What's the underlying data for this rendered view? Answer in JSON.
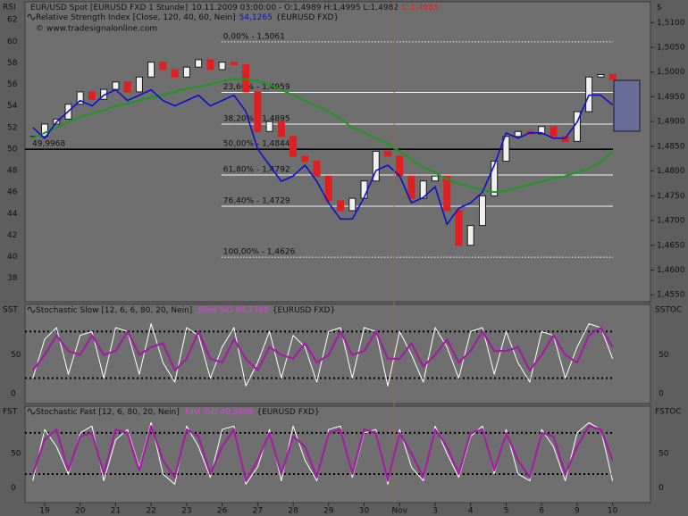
{
  "chart_data": [
    {
      "type": "candlestick",
      "left_axis_label": "RSI",
      "right_axis_label": "$",
      "watermark": "© www.tradesignalonline.com",
      "x": [
        0,
        1,
        2,
        3,
        4,
        5,
        6,
        7,
        8,
        9,
        10,
        11,
        12,
        13,
        14,
        15,
        16,
        17,
        18,
        19,
        20,
        21,
        22,
        23,
        24,
        25,
        26,
        27,
        28,
        29,
        30,
        31,
        32,
        33,
        34,
        35,
        36,
        37,
        38,
        39,
        40,
        41,
        42,
        43,
        44,
        45,
        46,
        47,
        48,
        49
      ],
      "xlim": [
        -0.66,
        52.2
      ],
      "xticks": [
        {
          "value": 1,
          "label": "19"
        },
        {
          "value": 4,
          "label": "20"
        },
        {
          "value": 7,
          "label": "21"
        },
        {
          "value": 10,
          "label": "22"
        },
        {
          "value": 13,
          "label": "23"
        },
        {
          "value": 16,
          "label": "26"
        },
        {
          "value": 19,
          "label": "27"
        },
        {
          "value": 22,
          "label": "28"
        },
        {
          "value": 25,
          "label": "29"
        },
        {
          "value": 28,
          "label": "30"
        },
        {
          "value": 31,
          "label": "Nov"
        },
        {
          "value": 34,
          "label": "3"
        },
        {
          "value": 37,
          "label": "4"
        },
        {
          "value": 40,
          "label": "5"
        },
        {
          "value": 43,
          "label": "6"
        },
        {
          "value": 46,
          "label": "9"
        },
        {
          "value": 49,
          "label": "10"
        }
      ],
      "ylim": [
        35.82,
        63.67
      ],
      "yticks": [
        38,
        40,
        42,
        44,
        46,
        48,
        50,
        52,
        54,
        56,
        58,
        60,
        62
      ],
      "y2lim": [
        1.4536,
        1.5142
      ],
      "y2ticks": [
        {
          "value": 1.51,
          "label": "1,5100"
        },
        {
          "value": 1.505,
          "label": "1,5050"
        },
        {
          "value": 1.5,
          "label": "1,5000"
        },
        {
          "value": 1.495,
          "label": "1,4950"
        },
        {
          "value": 1.49,
          "label": "1,4900"
        },
        {
          "value": 1.485,
          "label": "1,4850"
        },
        {
          "value": 1.48,
          "label": "1,4800"
        },
        {
          "value": 1.475,
          "label": "1,4750"
        },
        {
          "value": 1.47,
          "label": "1,4700"
        },
        {
          "value": 1.465,
          "label": "1,4650"
        },
        {
          "value": 1.46,
          "label": "1,4600"
        },
        {
          "value": 1.455,
          "label": "1,4550"
        }
      ],
      "series": [
        {
          "name": "EUR/USD Spot [EURUSD FXD  1 Stunde]",
          "readout": "10.11.2009 03:00:00 - O:1,4989 H:1,4995 L:1,4982",
          "last": "C:1,4985",
          "axis": "y2",
          "up_color": "#1a1a1a",
          "down_color": "#e02020",
          "values": [
            1.487,
            1.4895,
            1.4905,
            1.4935,
            1.496,
            1.4945,
            1.4965,
            1.498,
            1.496,
            1.499,
            1.502,
            1.5005,
            1.499,
            1.501,
            1.5025,
            1.5005,
            1.502,
            1.5015,
            1.496,
            1.488,
            1.49,
            1.487,
            1.483,
            1.482,
            1.479,
            1.474,
            1.472,
            1.4745,
            1.478,
            1.484,
            1.483,
            1.479,
            1.4745,
            1.478,
            1.479,
            1.472,
            1.465,
            1.469,
            1.475,
            1.482,
            1.487,
            1.488,
            1.4875,
            1.489,
            1.487,
            1.486,
            1.492,
            1.499,
            1.4995,
            1.4985
          ]
        },
        {
          "name": "Relative Strength Index [Close, 120, 40, 60, Nein]",
          "readout": "54,1265",
          "source": "{EURUSD FXD}",
          "color": "#1010d0",
          "values": [
            52,
            51,
            52.5,
            53.5,
            54.5,
            54,
            55,
            55.5,
            54.5,
            55,
            55.5,
            54.5,
            54,
            54.5,
            55,
            54,
            54.5,
            55,
            53.5,
            50,
            48.5,
            47,
            47.5,
            48.5,
            47,
            45,
            43.5,
            43.5,
            45.5,
            48,
            48.5,
            47.5,
            45,
            45.5,
            46.5,
            43,
            44.5,
            45,
            46,
            48.5,
            51.5,
            51,
            51.5,
            51.5,
            51,
            51,
            52.5,
            55,
            55,
            54.1
          ]
        },
        {
          "color": "#1c9a1c",
          "values": [
            51,
            51.5,
            52,
            52.5,
            53,
            53.3,
            53.6,
            54,
            54.2,
            54.5,
            54.8,
            55,
            55.3,
            55.6,
            55.8,
            56,
            56.3,
            56.5,
            56.5,
            56.3,
            56,
            55.5,
            55,
            54.5,
            54,
            53.5,
            52.8,
            52,
            51.5,
            51,
            50.5,
            49.8,
            49,
            48.3,
            47.8,
            47.2,
            46.8,
            46.5,
            46.2,
            46,
            46.1,
            46.4,
            46.7,
            47,
            47.3,
            47.5,
            47.8,
            48.2,
            48.8,
            49.8
          ]
        }
      ],
      "midline": 49.9968,
      "midline_label": "49,9968",
      "fib_levels": [
        {
          "value": 1.5061,
          "label": "0,00% - 1,5061"
        },
        {
          "value": 1.4959,
          "label": "23,60% - 1,4959"
        },
        {
          "value": 1.4895,
          "label": "38,20% - 1,4895"
        },
        {
          "value": 1.4844,
          "label": "50,00% - 1,4844"
        },
        {
          "value": 1.4792,
          "label": "61,80% - 1,4792"
        },
        {
          "value": 1.4729,
          "label": "76,40% - 1,4729"
        },
        {
          "value": 1.4626,
          "label": "100,00% - 1,4626"
        }
      ]
    },
    {
      "type": "line",
      "left_axis_label": "SST",
      "right_axis_label": "SSTOC",
      "title": "Stochastic Slow [12, 6, 6, 80, 20, Nein]",
      "readout": "Slow %D 60,2768",
      "source": "{EURUSD FXD}",
      "x": [
        0,
        1,
        2,
        3,
        4,
        5,
        6,
        7,
        8,
        9,
        10,
        11,
        12,
        13,
        14,
        15,
        16,
        17,
        18,
        19,
        20,
        21,
        22,
        23,
        24,
        25,
        26,
        27,
        28,
        29,
        30,
        31,
        32,
        33,
        34,
        35,
        36,
        37,
        38,
        39,
        40,
        41,
        42,
        43,
        44,
        45,
        46,
        47,
        48,
        49
      ],
      "xlim": [
        -0.66,
        52.2
      ],
      "ylim": [
        -12.5,
        114.8
      ],
      "yticks": [
        0,
        50
      ],
      "levels": [
        20,
        80
      ],
      "series": [
        {
          "color": "#ffffff",
          "values": [
            20,
            70,
            85,
            25,
            75,
            80,
            20,
            85,
            80,
            25,
            90,
            40,
            15,
            85,
            75,
            20,
            60,
            85,
            10,
            40,
            80,
            20,
            75,
            60,
            15,
            80,
            85,
            20,
            85,
            80,
            10,
            80,
            50,
            15,
            85,
            60,
            20,
            80,
            85,
            25,
            80,
            40,
            15,
            80,
            75,
            20,
            60,
            90,
            85,
            45
          ]
        },
        {
          "color": "#a21ea2",
          "values": [
            30,
            50,
            75,
            55,
            50,
            75,
            50,
            55,
            80,
            50,
            60,
            65,
            30,
            45,
            80,
            45,
            40,
            70,
            45,
            30,
            60,
            50,
            45,
            65,
            40,
            50,
            80,
            50,
            55,
            80,
            45,
            45,
            65,
            35,
            50,
            70,
            40,
            55,
            80,
            55,
            55,
            60,
            30,
            50,
            75,
            50,
            40,
            75,
            85,
            60.3
          ]
        }
      ]
    },
    {
      "type": "line",
      "left_axis_label": "FST",
      "right_axis_label": "FSTOC",
      "title": "Stochastic Fast [12, 6, 80, 20, Nein]",
      "readout": "Fast %D 40,3408",
      "source": "{EURUSD FXD}",
      "x": [
        0,
        1,
        2,
        3,
        4,
        5,
        6,
        7,
        8,
        9,
        10,
        11,
        12,
        13,
        14,
        15,
        16,
        17,
        18,
        19,
        20,
        21,
        22,
        23,
        24,
        25,
        26,
        27,
        28,
        29,
        30,
        31,
        32,
        33,
        34,
        35,
        36,
        37,
        38,
        39,
        40,
        41,
        42,
        43,
        44,
        45,
        46,
        47,
        48,
        49
      ],
      "xlim": [
        -0.66,
        52.2
      ],
      "ylim": [
        -21.8,
        119
      ],
      "yticks": [
        0,
        50
      ],
      "levels": [
        20,
        80
      ],
      "series": [
        {
          "color": "#ffffff",
          "values": [
            10,
            85,
            60,
            20,
            80,
            90,
            10,
            70,
            85,
            30,
            95,
            20,
            5,
            90,
            60,
            15,
            85,
            90,
            5,
            30,
            85,
            10,
            90,
            40,
            10,
            85,
            90,
            15,
            80,
            85,
            5,
            85,
            30,
            10,
            90,
            50,
            15,
            75,
            90,
            20,
            85,
            20,
            10,
            85,
            60,
            10,
            80,
            95,
            85,
            10
          ]
        },
        {
          "color": "#a21ea2",
          "values": [
            20,
            70,
            85,
            25,
            75,
            80,
            20,
            85,
            80,
            25,
            90,
            40,
            15,
            85,
            75,
            20,
            60,
            85,
            10,
            40,
            80,
            20,
            75,
            60,
            15,
            80,
            85,
            20,
            85,
            80,
            10,
            80,
            50,
            15,
            85,
            60,
            20,
            80,
            85,
            25,
            80,
            40,
            15,
            80,
            75,
            20,
            60,
            90,
            85,
            40.3
          ]
        }
      ]
    }
  ]
}
